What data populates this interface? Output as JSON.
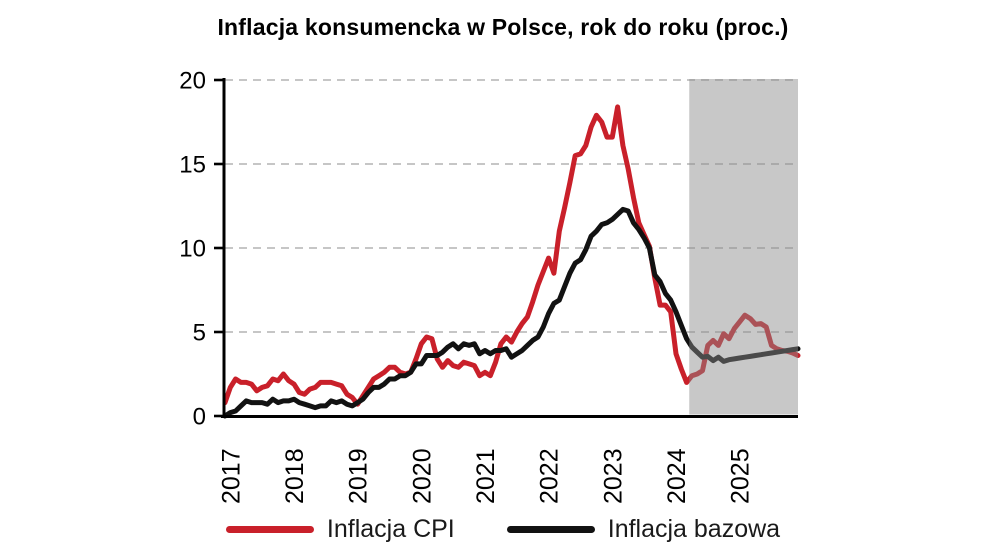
{
  "chart_data": {
    "type": "line",
    "title": "Inflacja konsumencka w Polsce, rok do roku (proc.)",
    "frequency": "monthly",
    "x_start": "2016-12",
    "x_end": "2025-12",
    "x_tick_labels": [
      "2017",
      "2018",
      "2019",
      "2020",
      "2021",
      "2022",
      "2023",
      "2024",
      "2025"
    ],
    "ylim": [
      0,
      20
    ],
    "yticks": [
      0,
      5,
      10,
      15,
      20
    ],
    "grid": "horizontal-dashed",
    "gridline_color": "#b4b4b4",
    "legend_position": "bottom",
    "forecast_band": {
      "start": "2024-04",
      "end": "2025-12",
      "overlay_color": "rgba(138,138,138,0.47)"
    },
    "series": [
      {
        "name": "Inflacja CPI",
        "color": "#c9202a",
        "values": [
          0.8,
          1.7,
          2.2,
          2.0,
          2.0,
          1.9,
          1.5,
          1.7,
          1.8,
          2.2,
          2.1,
          2.5,
          2.1,
          1.9,
          1.4,
          1.3,
          1.6,
          1.7,
          2.0,
          2.0,
          2.0,
          1.9,
          1.8,
          1.3,
          1.1,
          0.7,
          1.2,
          1.7,
          2.2,
          2.4,
          2.6,
          2.9,
          2.9,
          2.6,
          2.5,
          2.6,
          3.4,
          4.3,
          4.7,
          4.6,
          3.4,
          2.9,
          3.3,
          3.0,
          2.9,
          3.2,
          3.1,
          3.0,
          2.4,
          2.6,
          2.4,
          3.2,
          4.3,
          4.7,
          4.4,
          5.0,
          5.5,
          5.9,
          6.8,
          7.8,
          8.6,
          9.4,
          8.5,
          11.0,
          12.4,
          13.9,
          15.5,
          15.6,
          16.1,
          17.2,
          17.9,
          17.5,
          16.6,
          16.6,
          18.4,
          16.1,
          14.7,
          13.0,
          11.5,
          10.8,
          10.1,
          8.2,
          6.6,
          6.6,
          6.2,
          3.7,
          2.8,
          2.0,
          2.4,
          2.5,
          2.7,
          4.2,
          4.5,
          4.2,
          4.9,
          4.6,
          5.2,
          5.6,
          6.0,
          5.8,
          5.45,
          5.5,
          5.3,
          4.2,
          4.0,
          3.9,
          3.85,
          3.75,
          3.6
        ]
      },
      {
        "name": "Inflacja bazowa",
        "color": "#121212",
        "values": [
          0.0,
          0.2,
          0.3,
          0.6,
          0.9,
          0.8,
          0.8,
          0.8,
          0.7,
          1.0,
          0.8,
          0.9,
          0.9,
          1.0,
          0.8,
          0.7,
          0.6,
          0.5,
          0.6,
          0.6,
          0.9,
          0.8,
          0.9,
          0.7,
          0.6,
          0.8,
          1.0,
          1.4,
          1.7,
          1.7,
          1.9,
          2.2,
          2.2,
          2.4,
          2.4,
          2.6,
          3.1,
          3.1,
          3.6,
          3.6,
          3.6,
          3.8,
          4.1,
          4.3,
          4.0,
          4.3,
          4.2,
          4.3,
          3.7,
          3.9,
          3.7,
          3.9,
          3.9,
          4.0,
          3.5,
          3.7,
          3.9,
          4.2,
          4.5,
          4.7,
          5.3,
          6.1,
          6.7,
          6.9,
          7.7,
          8.5,
          9.1,
          9.3,
          9.9,
          10.7,
          11.0,
          11.4,
          11.5,
          11.7,
          12.0,
          12.3,
          12.2,
          11.5,
          11.1,
          10.6,
          10.0,
          8.4,
          8.0,
          7.3,
          6.9,
          6.2,
          5.4,
          4.6,
          4.1,
          3.8,
          3.5,
          3.55,
          3.3,
          3.5,
          3.25,
          3.35,
          3.4,
          3.45,
          3.5,
          3.55,
          3.6,
          3.65,
          3.7,
          3.75,
          3.8,
          3.85,
          3.9,
          3.95,
          4.0
        ]
      }
    ]
  }
}
